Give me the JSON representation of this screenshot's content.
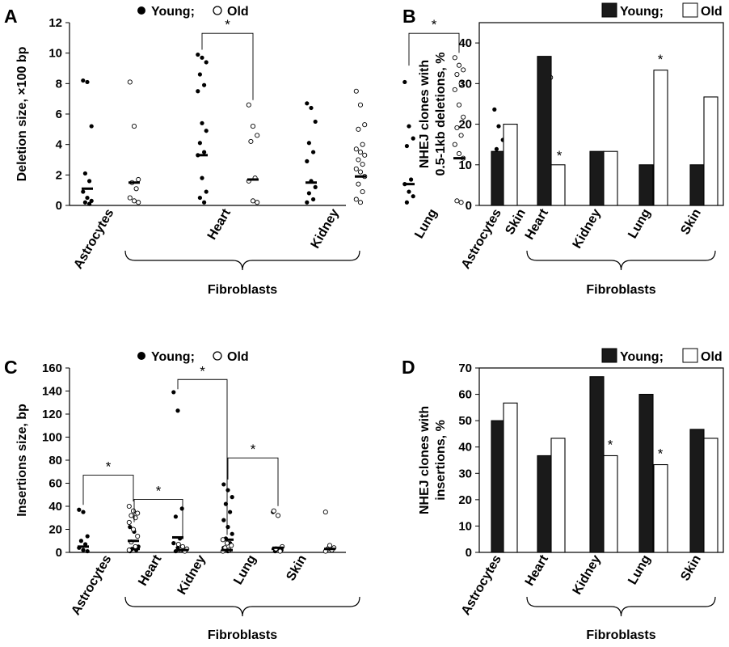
{
  "chart_data": [
    {
      "panel": "A",
      "type": "scatter",
      "ylabel": "Deletion size, ×100 bp",
      "ylim": [
        0,
        12
      ],
      "yticks": [
        0,
        2,
        4,
        6,
        8,
        10,
        12
      ],
      "legend": [
        "Young;",
        "Old"
      ],
      "categories": [
        "Astrocytes",
        "Heart",
        "Kidney",
        "Lung",
        "Skin"
      ],
      "group_label": "Fibroblasts",
      "series": [
        {
          "name": "Young",
          "medians": [
            1.1,
            3.3,
            1.5,
            1.4,
            1.3
          ],
          "points": [
            [
              8.2,
              8.1,
              5.2,
              2.1,
              1.6,
              0.9,
              0.5,
              0.3,
              0.2,
              0.1
            ],
            [
              9.9,
              9.7,
              9.4,
              8.6,
              7.9,
              7.5,
              5.4,
              4.9,
              4.1,
              3.5,
              3.3,
              1.8,
              0.9,
              0.5,
              0.2
            ],
            [
              6.7,
              6.4,
              5.5,
              4.1,
              3.5,
              2.9,
              1.6,
              1.2,
              0.8,
              0.4,
              0.2
            ],
            [
              8.1,
              5.2,
              4.4,
              3.9,
              1.7,
              1.4,
              0.9,
              0.6,
              0.2
            ],
            [
              6.3,
              5.2,
              4.3,
              3.7,
              2.4,
              1.6,
              1.1,
              0.6,
              0.2
            ]
          ]
        },
        {
          "name": "Old",
          "medians": [
            1.5,
            1.7,
            1.9,
            3.1,
            2.6
          ],
          "points": [
            [
              8.1,
              5.2,
              1.7,
              1.5,
              1.1,
              0.5,
              0.3,
              0.2
            ],
            [
              6.6,
              5.2,
              4.6,
              4.2,
              1.8,
              1.6,
              0.3,
              0.2
            ],
            [
              7.5,
              6.6,
              5.3,
              5.0,
              4.0,
              3.7,
              3.5,
              3.3,
              3.0,
              2.7,
              2.4,
              2.2,
              1.9,
              1.4,
              0.9,
              0.4,
              0.2
            ],
            [
              9.7,
              9.2,
              8.9,
              8.6,
              8.0,
              7.6,
              6.6,
              5.8,
              5.1,
              4.6,
              4.0,
              3.4,
              3.1,
              0.3,
              0.2
            ],
            [
              9.3,
              9.1,
              8.4,
              8.1,
              7.9,
              3.8,
              2.6,
              1.6,
              1.0,
              0.4,
              0.2
            ]
          ]
        }
      ],
      "significance": [
        {
          "category": "Heart",
          "label": "*",
          "y": 11.3
        },
        {
          "category": "Lung",
          "label": "*",
          "y": 11.3
        }
      ]
    },
    {
      "panel": "B",
      "type": "bar",
      "ylabel": "NHEJ clones with 0.5-1kb deletions, %",
      "ylim": [
        0,
        45
      ],
      "yticks": [
        0,
        10,
        20,
        30,
        40
      ],
      "legend": [
        "Young;",
        "Old"
      ],
      "categories": [
        "Astrocytes",
        "Heart",
        "Kidney",
        "Lung",
        "Skin"
      ],
      "group_label": "Fibroblasts",
      "series": [
        {
          "name": "Young",
          "values": [
            13.3,
            36.7,
            13.3,
            10.0,
            10.0
          ]
        },
        {
          "name": "Old",
          "values": [
            20.0,
            10.0,
            13.3,
            33.3,
            26.7
          ]
        }
      ],
      "significance": [
        {
          "category": "Heart",
          "series": "Old",
          "label": "*"
        },
        {
          "category": "Lung",
          "series": "Old",
          "label": "*"
        }
      ]
    },
    {
      "panel": "C",
      "type": "scatter",
      "ylabel": "Insertions size, bp",
      "ylim": [
        0,
        160
      ],
      "yticks": [
        0,
        20,
        40,
        60,
        80,
        100,
        120,
        140,
        160
      ],
      "legend": [
        "Young;",
        "Old"
      ],
      "categories": [
        "Astrocytes",
        "Heart",
        "Kidney",
        "Lung",
        "Skin"
      ],
      "group_label": "Fibroblasts",
      "series": [
        {
          "name": "Young",
          "medians": [
            5,
            3,
            13,
            11,
            3
          ],
          "points": [
            [
              37,
              35,
              14,
              10,
              7,
              4,
              2,
              1
            ],
            [
              22,
              18,
              5,
              3,
              2,
              1
            ],
            [
              139,
              123,
              38,
              31,
              12,
              8,
              4,
              2,
              1
            ],
            [
              59,
              54,
              48,
              42,
              35,
              28,
              22,
              16,
              12,
              8,
              4,
              1
            ],
            [
              35,
              3,
              2,
              1
            ]
          ]
        },
        {
          "name": "Old",
          "medians": [
            10,
            2,
            2,
            4,
            3
          ],
          "points": [
            [
              40,
              36,
              34,
              32,
              30,
              26,
              20,
              14,
              9,
              5,
              2
            ],
            [
              7,
              5,
              3,
              2,
              1
            ],
            [
              11,
              8,
              6,
              4,
              2,
              1
            ],
            [
              36,
              32,
              5,
              3,
              1
            ],
            [
              35,
              6,
              4,
              3,
              2,
              1
            ]
          ]
        }
      ],
      "significance": [
        {
          "category": "Astrocytes",
          "label": "*",
          "y": 67
        },
        {
          "category": "Heart",
          "label": "*",
          "y": 46
        },
        {
          "category": "Kidney",
          "label": "*",
          "y": 150
        },
        {
          "category": "Lung",
          "label": "*",
          "y": 82
        }
      ]
    },
    {
      "panel": "D",
      "type": "bar",
      "ylabel": "NHEJ clones with insertions, %",
      "ylim": [
        0,
        70
      ],
      "yticks": [
        0,
        10,
        20,
        30,
        40,
        50,
        60,
        70
      ],
      "legend": [
        "Young;",
        "Old"
      ],
      "categories": [
        "Astrocytes",
        "Heart",
        "Kidney",
        "Lung",
        "Skin"
      ],
      "group_label": "Fibroblasts",
      "series": [
        {
          "name": "Young",
          "values": [
            50.0,
            36.7,
            66.7,
            60.0,
            46.7
          ]
        },
        {
          "name": "Old",
          "values": [
            56.7,
            43.3,
            36.7,
            33.3,
            43.3
          ]
        }
      ],
      "significance": [
        {
          "category": "Kidney",
          "series": "Old",
          "label": "*"
        },
        {
          "category": "Lung",
          "series": "Old",
          "label": "*"
        }
      ]
    }
  ]
}
